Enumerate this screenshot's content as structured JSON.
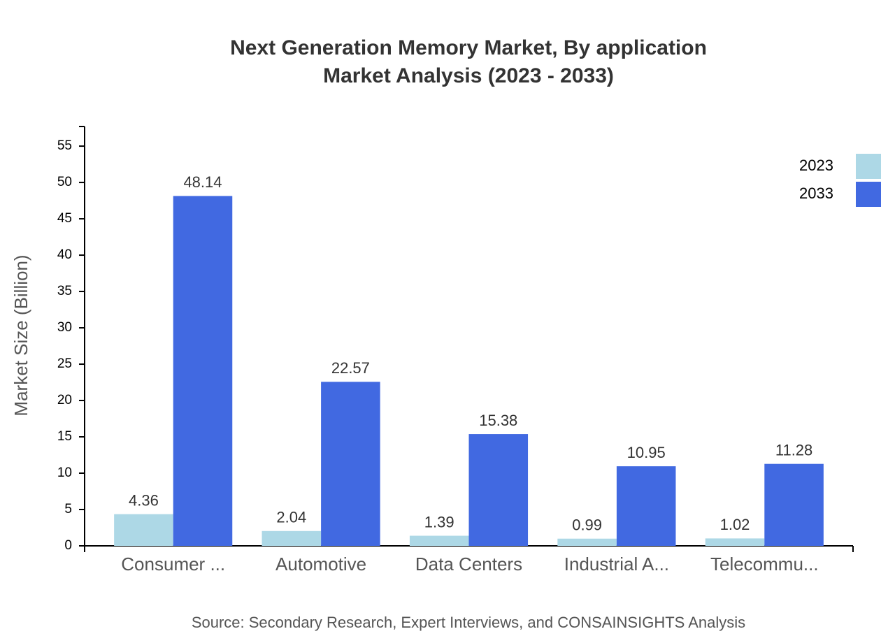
{
  "chart_data": {
    "type": "bar",
    "title": "Next Generation Memory Market, By application",
    "subtitle": "Market Analysis (2023 - 2033)",
    "y_label": "Market Size (Billion)",
    "source": "Source: Secondary Research, Expert Interviews, and CONSAINSIGHTS Analysis",
    "categories": [
      "Consumer ...",
      "Automotive",
      "Data Centers",
      "Industrial A...",
      "Telecommu..."
    ],
    "series": [
      {
        "name": "2023",
        "color": "#add8e6",
        "values": [
          4.36,
          2.04,
          1.39,
          0.99,
          1.02
        ]
      },
      {
        "name": "2033",
        "color": "#4169e1",
        "values": [
          48.14,
          22.57,
          15.38,
          10.95,
          11.28
        ]
      }
    ],
    "ylim": [
      0,
      57.7
    ],
    "yticks": [
      0,
      5,
      10,
      15,
      20,
      25,
      30,
      35,
      40,
      45,
      50,
      55
    ],
    "legend": "top-right"
  }
}
